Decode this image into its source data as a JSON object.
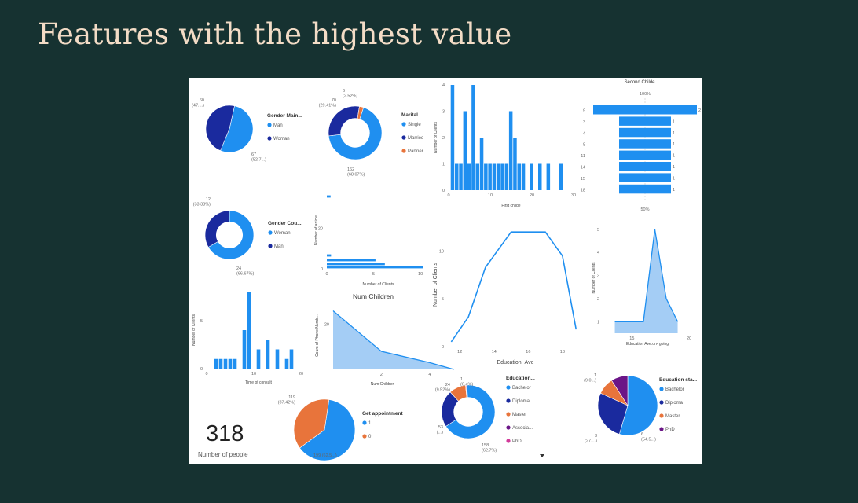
{
  "slide": {
    "title": "Features with the highest value"
  },
  "colors": {
    "blue": "#1f8ff0",
    "navy": "#1a2a9e",
    "orange": "#e8743b",
    "purple": "#6b1587",
    "pink": "#d23a9a",
    "light": "#a4cdf5"
  },
  "chart_data": [
    {
      "id": "gender-main",
      "type": "pie",
      "title": "Gender Main...",
      "categories": [
        "Man",
        "Woman"
      ],
      "values": [
        67,
        60
      ],
      "labels": [
        "67\n(52.7...)",
        "60\n(47....)"
      ],
      "colors": [
        "#1f8ff0",
        "#1a2a9e"
      ]
    },
    {
      "id": "marital",
      "type": "pie",
      "donut": true,
      "title": "Marital",
      "categories": [
        "Single",
        "Married",
        "Partner"
      ],
      "values": [
        162,
        70,
        6
      ],
      "labels": [
        "162\n(68.07%)",
        "70\n(29.41%)",
        "6\n(2.52%)"
      ],
      "colors": [
        "#1f8ff0",
        "#1a2a9e",
        "#e8743b"
      ]
    },
    {
      "id": "first-childe",
      "type": "bar",
      "xlabel": "First childe",
      "ylabel": "Number of Clients",
      "x": [
        1,
        2,
        3,
        4,
        5,
        6,
        7,
        8,
        9,
        10,
        11,
        12,
        13,
        14,
        15,
        16,
        17,
        18,
        20,
        22,
        24,
        27
      ],
      "values": [
        4,
        1,
        1,
        3,
        1,
        4,
        1,
        2,
        1,
        1,
        1,
        1,
        1,
        1,
        3,
        2,
        1,
        1,
        1,
        1,
        1,
        1
      ],
      "xlim": [
        0,
        30
      ],
      "ylim": [
        0,
        4
      ],
      "xticks": [
        0,
        10,
        20,
        30
      ],
      "yticks": [
        0,
        1,
        2,
        3,
        4
      ]
    },
    {
      "id": "second-childe",
      "type": "bar",
      "orientation": "funnel",
      "title": "Second Childe",
      "categories": [
        "9",
        "3",
        "4",
        "8",
        "11",
        "14",
        "15",
        "18"
      ],
      "values": [
        2,
        1,
        1,
        1,
        1,
        1,
        1,
        1
      ],
      "top_label": "100%",
      "bottom_label": "50%"
    },
    {
      "id": "gender-cou",
      "type": "pie",
      "donut": true,
      "title": "Gender Cou...",
      "categories": [
        "Woman",
        "Man"
      ],
      "values": [
        24,
        12
      ],
      "labels": [
        "24\n(66.67%)",
        "12\n(33.33%)"
      ],
      "colors": [
        "#1f8ff0",
        "#1a2a9e"
      ]
    },
    {
      "id": "num-clients-article",
      "type": "bar",
      "orientation": "horizontal",
      "xlabel": "Number of Clients",
      "ylabel": "Number of article",
      "values": [
        0.4,
        0.45,
        5.2,
        6.2,
        10.3
      ],
      "xticks": [
        0,
        5,
        10
      ],
      "yticks": [
        0,
        20
      ]
    },
    {
      "id": "education-ave",
      "type": "line",
      "xlabel": "Education_Ave",
      "ylabel": "Number of Clients",
      "x": [
        11.5,
        12.5,
        13.5,
        15,
        16,
        17,
        18,
        18.8
      ],
      "y": [
        0.5,
        3.1,
        8.3,
        12,
        12,
        12,
        9.5,
        1.8
      ],
      "xlim": [
        11.3,
        19.2
      ],
      "ylim": [
        0,
        13
      ],
      "xticks": [
        12,
        14,
        16,
        18
      ],
      "yticks": [
        0,
        5,
        10
      ]
    },
    {
      "id": "education-on-going",
      "type": "area",
      "xlabel": "Education Ave.on- going",
      "ylabel": "Number of Clients",
      "x": [
        13.5,
        15,
        16,
        17,
        18,
        19
      ],
      "y": [
        1,
        1,
        1,
        5,
        2,
        1
      ],
      "xlim": [
        12.5,
        20.2
      ],
      "ylim": [
        0.5,
        5.3
      ],
      "xticks": [
        15,
        20
      ],
      "yticks": [
        1,
        2,
        3,
        4,
        5
      ]
    },
    {
      "id": "time-of-consult",
      "type": "bar",
      "xlabel": "Time of consult",
      "ylabel": "Number of Clients",
      "x": [
        2,
        3,
        4,
        5,
        6,
        8,
        9,
        11,
        13,
        15,
        17,
        18
      ],
      "values": [
        1,
        1,
        1,
        1,
        1,
        4,
        8,
        2,
        3,
        2,
        1,
        2
      ],
      "xlim": [
        0,
        22
      ],
      "ylim": [
        0,
        8
      ],
      "xticks": [
        0,
        10,
        20
      ],
      "yticks": [
        0,
        5
      ]
    },
    {
      "id": "num-children",
      "type": "area",
      "title": "Num Children",
      "xlabel": "Num Children",
      "ylabel": "Count of Phone Numb...",
      "x": [
        0,
        2,
        4,
        5
      ],
      "y": [
        26,
        8,
        3,
        0
      ],
      "xlim": [
        0,
        4.1
      ],
      "ylim": [
        0,
        30
      ],
      "xticks": [
        2,
        4
      ],
      "yticks": [
        20
      ]
    },
    {
      "id": "get-appointment",
      "type": "pie",
      "title": "Get appointment",
      "categories": [
        "1",
        "0"
      ],
      "values": [
        199,
        119
      ],
      "labels": [
        "199 (62.5...)",
        "119\n(37.42%)"
      ],
      "colors": [
        "#1f8ff0",
        "#e8743b"
      ]
    },
    {
      "id": "education",
      "type": "pie",
      "donut": true,
      "title": "Education...",
      "categories": [
        "Bachelor",
        "Diploma",
        "Master",
        "Associa...",
        "PhD"
      ],
      "values": [
        158,
        53,
        24,
        1,
        1
      ],
      "labels": [
        "158\n(62.7%)",
        "53\n(...)",
        "24\n(9.52%)",
        "1\n(0.4%)",
        ""
      ],
      "colors": [
        "#1f8ff0",
        "#1a2a9e",
        "#e8743b",
        "#6b1587",
        "#d23a9a"
      ]
    },
    {
      "id": "education-sta",
      "type": "pie",
      "title": "Education sta...",
      "categories": [
        "Bachelor",
        "Diploma",
        "Master",
        "PhD"
      ],
      "values": [
        6,
        3,
        1,
        1
      ],
      "labels": [
        "6\n(54.5...)",
        "3\n(27....)",
        "1\n(9.0...)",
        ""
      ],
      "colors": [
        "#1f8ff0",
        "#1a2a9e",
        "#e8743b",
        "#6b1587"
      ]
    }
  ],
  "card": {
    "value": "318",
    "label": "Number of people"
  }
}
